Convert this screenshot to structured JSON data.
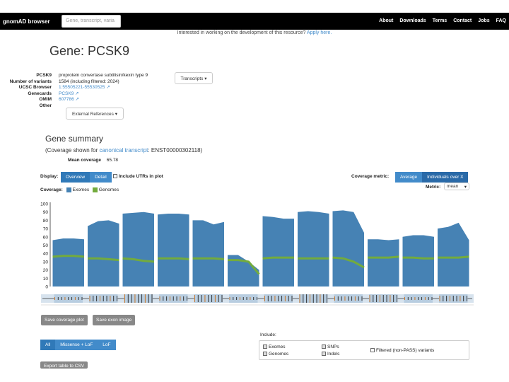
{
  "nav": {
    "brand": "gnomAD browser",
    "search_placeholder": "Gene, transcript, varia",
    "links": [
      "About",
      "Downloads",
      "Terms",
      "Contact",
      "Jobs",
      "FAQ"
    ]
  },
  "banner": {
    "text": "Interested in working on the development of this resource? ",
    "link": "Apply here."
  },
  "page_title": "Gene: PCSK9",
  "gene_info": {
    "rows": [
      {
        "key": "PCSK9",
        "value": "proprotein convertase subtilisin/kexin type 9"
      },
      {
        "key": "Number of variants",
        "value": "1584 (including filtered: 2024)"
      },
      {
        "key": "UCSC Browser",
        "value": "1:55505221-55530525 ↗"
      },
      {
        "key": "Genecards",
        "value": "PCSK9 ↗"
      },
      {
        "key": "OMIM",
        "value": "607786 ↗"
      },
      {
        "key": "Other",
        "value": ""
      }
    ],
    "transcripts_button": "Transcripts ▾",
    "external_refs_button": "External References ▾"
  },
  "summary": {
    "heading": "Gene summary",
    "coverage_note_prefix": "(Coverage shown for ",
    "coverage_note_link": "canonical transcript",
    "coverage_note_suffix": ": ENST00000302118)",
    "mean_coverage_label": "Mean coverage",
    "mean_coverage_value": "65.78"
  },
  "controls": {
    "display_label": "Display:",
    "display_options": [
      "Overview",
      "Detail"
    ],
    "include_utrs": "Include UTRs in plot",
    "coverage_label": "Coverage:",
    "legend_exomes": "Exomes",
    "legend_genomes": "Genomes",
    "metric_label": "Coverage metric:",
    "metric_options": [
      "Average",
      "Individuals over X"
    ],
    "metric_select_label": "Metric:",
    "metric_select_value": "mean"
  },
  "colors": {
    "exomes": "#4682b4",
    "genomes": "#73ab3d",
    "brand_blue": "#428bca"
  },
  "chart_data": {
    "type": "area",
    "y_ticks": [
      0,
      10,
      20,
      30,
      40,
      50,
      60,
      70,
      80,
      90,
      100
    ],
    "ylim": [
      0,
      100
    ],
    "exons": [
      {
        "exome": [
          56,
          58,
          58,
          57
        ],
        "genome": [
          36,
          37,
          37,
          36
        ]
      },
      {
        "exome": [
          73,
          79,
          80,
          76
        ],
        "genome": [
          34,
          34,
          33,
          32
        ]
      },
      {
        "exome": [
          88,
          89,
          90,
          88
        ],
        "genome": [
          34,
          33,
          31,
          30
        ]
      },
      {
        "exome": [
          87,
          88,
          88,
          87
        ],
        "genome": [
          34,
          34,
          34,
          33
        ]
      },
      {
        "exome": [
          80,
          80,
          75,
          78
        ],
        "genome": [
          34,
          34,
          34,
          33
        ]
      },
      {
        "exome": [
          38,
          38,
          30,
          20
        ],
        "genome": [
          32,
          32,
          30,
          15
        ]
      },
      {
        "exome": [
          85,
          84,
          82,
          82
        ],
        "genome": [
          34,
          35,
          35,
          35
        ]
      },
      {
        "exome": [
          90,
          91,
          90,
          88
        ],
        "genome": [
          34,
          34,
          34,
          34
        ]
      },
      {
        "exome": [
          91,
          92,
          90,
          65
        ],
        "genome": [
          35,
          34,
          30,
          23
        ]
      },
      {
        "exome": [
          57,
          57,
          56,
          57
        ],
        "genome": [
          35,
          35,
          35,
          36
        ]
      },
      {
        "exome": [
          60,
          62,
          62,
          60
        ],
        "genome": [
          35,
          35,
          34,
          34
        ]
      },
      {
        "exome": [
          70,
          72,
          77,
          56
        ],
        "genome": [
          35,
          35,
          35,
          36
        ]
      }
    ]
  },
  "plot_buttons": [
    "Save coverage plot",
    "Save exon image"
  ],
  "filters": {
    "consequence": [
      "All",
      "Missense + LoF",
      "LoF"
    ],
    "include_label": "Include:",
    "checks": [
      {
        "label": "Exomes",
        "checked": true
      },
      {
        "label": "Genomes",
        "checked": true
      },
      {
        "label": "SNPs",
        "checked": true
      },
      {
        "label": "Indels",
        "checked": true
      },
      {
        "label": "Filtered (non-PASS) variants",
        "checked": false
      }
    ],
    "export_button": "Export table to CSV"
  }
}
